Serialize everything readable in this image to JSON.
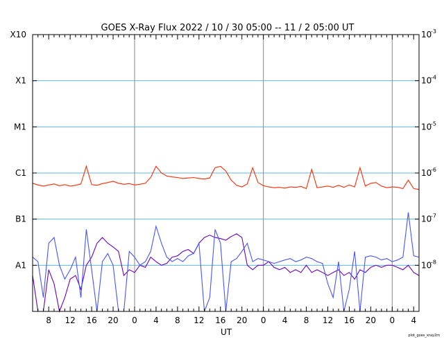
{
  "chart_data": {
    "type": "line",
    "title": "GOES X-Ray Flux   2022 / 10 / 30   05:00 -- 11 /  2   05:00   UT",
    "xlabel": "UT",
    "x_range_hours": [
      0,
      72
    ],
    "x_tick_labels": [
      "8",
      "12",
      "16",
      "20",
      "0",
      "4",
      "8",
      "12",
      "16",
      "20",
      "0",
      "4",
      "8",
      "12",
      "16",
      "20",
      "0",
      "4"
    ],
    "x_tick_hours": [
      3,
      7,
      11,
      15,
      19,
      23,
      27,
      31,
      35,
      39,
      43,
      47,
      51,
      55,
      59,
      63,
      67,
      71
    ],
    "day_boundary_hours": [
      19,
      43,
      67
    ],
    "y_scale": "log",
    "y_range": [
      1e-09,
      0.001
    ],
    "left_labels": [
      {
        "label": "X10",
        "value": 0.001
      },
      {
        "label": "X1",
        "value": 0.0001
      },
      {
        "label": "M1",
        "value": 1e-05
      },
      {
        "label": "C1",
        "value": 1e-06
      },
      {
        "label": "B1",
        "value": 1e-07
      },
      {
        "label": "A1",
        "value": 1e-08
      }
    ],
    "right_labels": [
      {
        "base": "10",
        "exp": "-3",
        "value": 0.001
      },
      {
        "base": "10",
        "exp": "-4",
        "value": 0.0001
      },
      {
        "base": "10",
        "exp": "-5",
        "value": 1e-05
      },
      {
        "base": "10",
        "exp": "-6",
        "value": 1e-06
      },
      {
        "base": "10",
        "exp": "-7",
        "value": 1e-07
      },
      {
        "base": "10",
        "exp": "-8",
        "value": 1e-08
      }
    ],
    "grid_values": [
      0.0001,
      1e-05,
      1e-06,
      1e-07,
      1e-08
    ],
    "series": [
      {
        "color": "#ff2a00",
        "x": [
          0,
          1,
          2,
          3,
          4,
          5,
          6,
          7,
          8,
          9,
          10,
          11,
          12,
          13,
          14,
          15,
          16,
          17,
          18,
          19,
          20,
          21,
          22,
          23,
          24,
          25,
          26,
          27,
          28,
          29,
          30,
          31,
          32,
          33,
          34,
          35,
          36,
          37,
          38,
          39,
          40,
          41,
          42,
          43,
          44,
          45,
          46,
          47,
          48,
          49,
          50,
          51,
          52,
          53,
          54,
          55,
          56,
          57,
          58,
          59,
          60,
          61,
          62,
          63,
          64,
          65,
          66,
          67,
          68,
          69,
          70,
          71,
          72
        ],
        "y": [
          6e-07,
          5.5e-07,
          5.2e-07,
          5.5e-07,
          5.8e-07,
          5.3e-07,
          5.6e-07,
          5.2e-07,
          5.4e-07,
          5.8e-07,
          1.4e-06,
          5.6e-07,
          5.4e-07,
          5.9e-07,
          6.2e-07,
          6.6e-07,
          6e-07,
          5.7e-07,
          5.9e-07,
          5.5e-07,
          5.7e-07,
          6e-07,
          8e-07,
          1.4e-06,
          1e-06,
          8.6e-07,
          8.2e-07,
          8e-07,
          7.6e-07,
          7.8e-07,
          8e-07,
          7.6e-07,
          7.4e-07,
          7.8e-07,
          1.3e-06,
          1.4e-06,
          1.1e-06,
          7e-07,
          5.4e-07,
          5e-07,
          5.8e-07,
          1.3e-06,
          6.2e-07,
          5.3e-07,
          5e-07,
          4.8e-07,
          4.9e-07,
          4.7e-07,
          5e-07,
          4.9e-07,
          5.1e-07,
          4.6e-07,
          1.2e-06,
          4.8e-07,
          5e-07,
          5.2e-07,
          4.9e-07,
          5.4e-07,
          4.9e-07,
          5.5e-07,
          5e-07,
          1.3e-06,
          5.2e-07,
          6e-07,
          6.2e-07,
          5.2e-07,
          4.8e-07,
          5e-07,
          4.9e-07,
          4.6e-07,
          7e-07,
          4.6e-07,
          4.4e-07
        ]
      },
      {
        "color": "#4455ff",
        "x": [
          0,
          1,
          2,
          3,
          4,
          5,
          6,
          7,
          8,
          9,
          10,
          11,
          12,
          13,
          14,
          15,
          16,
          17,
          18,
          19,
          20,
          21,
          22,
          23,
          24,
          25,
          26,
          27,
          28,
          29,
          30,
          31,
          32,
          33,
          34,
          35,
          36,
          37,
          38,
          39,
          40,
          41,
          42,
          43,
          44,
          45,
          46,
          47,
          48,
          49,
          50,
          51,
          52,
          53,
          54,
          55,
          56,
          57,
          58,
          59,
          60,
          61,
          62,
          63,
          64,
          65,
          66,
          67,
          68,
          69,
          70,
          71,
          72
        ],
        "y": [
          1.5e-08,
          1.2e-08,
          2e-09,
          3e-08,
          4e-08,
          1e-08,
          5e-09,
          8e-09,
          1.5e-08,
          2e-09,
          6e-08,
          8e-09,
          1e-09,
          1.2e-08,
          1.8e-08,
          1e-08,
          1e-09,
          1e-09,
          2e-08,
          1.5e-08,
          1e-08,
          1.2e-08,
          2e-08,
          7e-08,
          3e-08,
          1.5e-08,
          1.2e-08,
          1.4e-08,
          1.2e-08,
          1.6e-08,
          1.8e-08,
          3e-08,
          1e-09,
          2e-09,
          6e-08,
          3e-08,
          1e-09,
          1.2e-08,
          1.4e-08,
          2e-08,
          3e-08,
          1.2e-08,
          1.4e-08,
          1.3e-08,
          1.2e-08,
          1.1e-08,
          1.2e-08,
          1.3e-08,
          1.4e-08,
          1.2e-08,
          1.3e-08,
          1.5e-08,
          1.4e-08,
          1.2e-08,
          1.1e-08,
          4e-09,
          2e-09,
          1.2e-08,
          1e-09,
          3e-09,
          2e-08,
          1e-09,
          1.5e-08,
          1.6e-08,
          1.5e-08,
          1.3e-08,
          1.4e-08,
          1.2e-08,
          1.3e-08,
          1.5e-08,
          1.4e-07,
          1.6e-08,
          1.5e-08
        ]
      },
      {
        "color": "#6a00c0",
        "x": [
          0,
          1,
          2,
          3,
          4,
          5,
          6,
          7,
          8,
          9,
          10,
          11,
          12,
          13,
          14,
          15,
          16,
          17,
          18,
          19,
          20,
          21,
          22,
          23,
          24,
          25,
          26,
          27,
          28,
          29,
          30,
          31,
          32,
          33,
          34,
          35,
          36,
          37,
          38,
          39,
          40,
          41,
          42,
          43,
          44,
          45,
          46,
          47,
          48,
          49,
          50,
          51,
          52,
          53,
          54,
          55,
          56,
          57,
          58,
          59,
          60,
          61,
          62,
          63,
          64,
          65,
          66,
          67,
          68,
          69,
          70,
          71,
          72
        ],
        "y": [
          6e-09,
          1e-09,
          1e-09,
          8e-09,
          4e-09,
          1e-09,
          2e-09,
          5e-09,
          6e-09,
          3e-09,
          1e-08,
          1.5e-08,
          3e-08,
          4e-08,
          3e-08,
          2.5e-08,
          2e-08,
          6e-09,
          8e-09,
          7e-09,
          1e-08,
          9e-09,
          1.5e-08,
          1.2e-08,
          1e-08,
          1.1e-08,
          1.5e-08,
          1.6e-08,
          2e-08,
          2.2e-08,
          1.8e-08,
          3e-08,
          4e-08,
          4.5e-08,
          4e-08,
          3.8e-08,
          3.5e-08,
          4.2e-08,
          4.8e-08,
          4e-08,
          1e-08,
          8e-09,
          1e-08,
          1e-08,
          1.2e-08,
          9e-09,
          8e-09,
          9e-09,
          7e-09,
          8e-09,
          7e-09,
          1e-08,
          7e-09,
          8e-09,
          7e-09,
          6e-09,
          7e-09,
          8e-09,
          6e-09,
          7e-09,
          5e-09,
          8e-09,
          7e-09,
          9e-09,
          1e-08,
          9e-09,
          1e-08,
          1e-08,
          9e-09,
          8e-09,
          1e-08,
          7e-09,
          6e-09
        ]
      }
    ],
    "footnote": "plot_goes_xray2m"
  }
}
